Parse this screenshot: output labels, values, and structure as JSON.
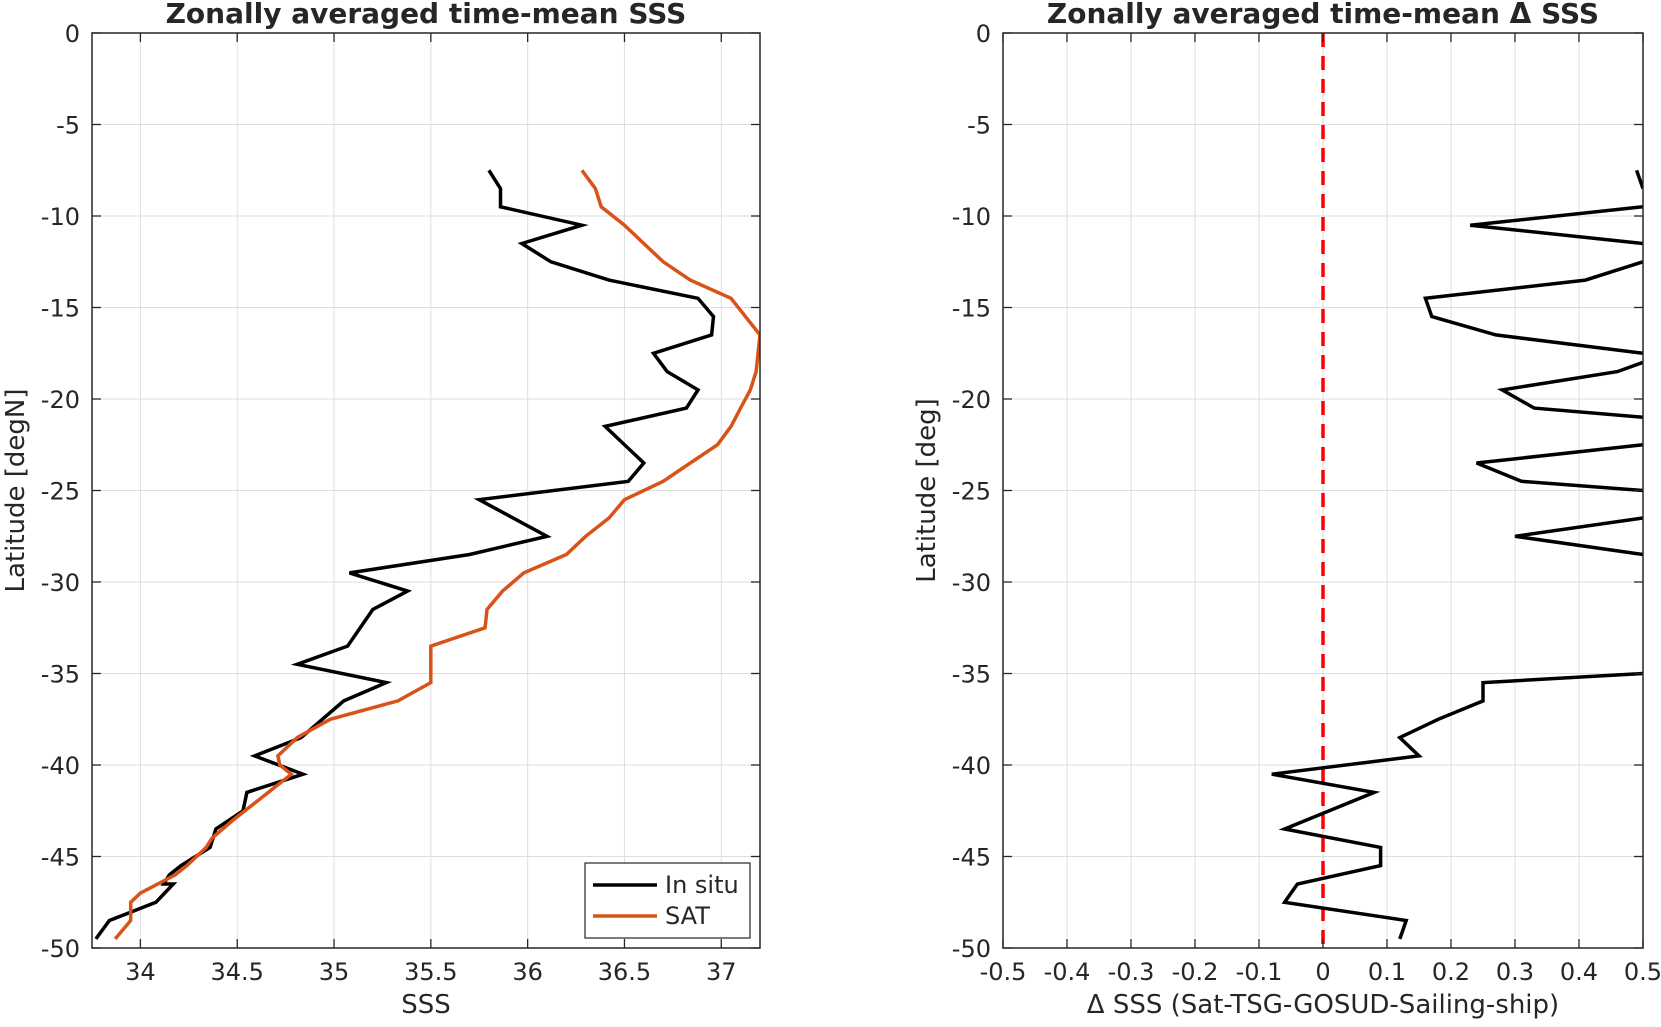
{
  "chart_data": [
    {
      "type": "line",
      "title": "Zonally averaged time-mean SSS",
      "xlabel": "SSS",
      "ylabel": "Latitude [degN]",
      "xlim": [
        33.75,
        37.2
      ],
      "ylim": [
        -50,
        0
      ],
      "xticks": [
        34,
        34.5,
        35,
        35.5,
        36,
        36.5,
        37
      ],
      "xtick_labels": [
        "34",
        "34.5",
        "35",
        "35.5",
        "36",
        "36.5",
        "37"
      ],
      "yticks": [
        0,
        -5,
        -10,
        -15,
        -20,
        -25,
        -30,
        -35,
        -40,
        -45,
        -50
      ],
      "ytick_labels": [
        "0",
        "-5",
        "-10",
        "-15",
        "-20",
        "-25",
        "-30",
        "-35",
        "-40",
        "-45",
        "-50"
      ],
      "grid": true,
      "legend_position": "bottom-right",
      "series": [
        {
          "name": "In situ",
          "color": "#000000",
          "x": [
            35.8,
            35.86,
            35.86,
            36.28,
            35.97,
            36.12,
            36.42,
            36.88,
            36.96,
            36.95,
            36.65,
            36.72,
            36.88,
            36.82,
            36.4,
            36.6,
            36.52,
            35.75,
            36.1,
            35.7,
            35.08,
            35.38,
            35.2,
            35.07,
            34.81,
            35.27,
            35.05,
            34.83,
            34.59,
            34.84,
            34.55,
            34.53,
            34.39,
            34.36,
            34.21,
            34.15,
            34.12,
            34.17,
            34.08,
            33.84,
            33.77
          ],
          "y": [
            -7.5,
            -8.5,
            -9.5,
            -10.5,
            -11.5,
            -12.5,
            -13.5,
            -14.5,
            -15.5,
            -16.5,
            -17.5,
            -18.5,
            -19.5,
            -20.5,
            -21.5,
            -23.5,
            -24.5,
            -25.5,
            -27.5,
            -28.5,
            -29.5,
            -30.5,
            -31.5,
            -33.5,
            -34.5,
            -35.5,
            -36.5,
            -38.5,
            -39.5,
            -40.5,
            -41.5,
            -42.5,
            -43.5,
            -44.5,
            -45.5,
            -46.0,
            -46.5,
            -46.5,
            -47.5,
            -48.5,
            -49.5
          ]
        },
        {
          "name": "SAT",
          "color": "#D95319",
          "x": [
            36.28,
            36.35,
            36.38,
            36.5,
            36.6,
            36.7,
            36.84,
            37.05,
            37.2,
            37.18,
            37.15,
            37.1,
            37.05,
            36.98,
            36.84,
            36.7,
            36.5,
            36.42,
            36.3,
            36.2,
            35.98,
            35.87,
            35.79,
            35.78,
            35.5,
            35.5,
            35.5,
            35.33,
            34.98,
            34.81,
            34.71,
            34.72,
            34.78,
            34.72,
            34.6,
            34.48,
            34.37,
            34.34,
            34.24,
            34.18,
            34.0,
            33.95,
            33.95,
            33.87
          ],
          "y": [
            -7.5,
            -8.5,
            -9.5,
            -10.5,
            -11.5,
            -12.5,
            -13.5,
            -14.5,
            -16.5,
            -18.5,
            -19.5,
            -20.5,
            -21.5,
            -22.5,
            -23.5,
            -24.5,
            -25.5,
            -26.5,
            -27.5,
            -28.5,
            -29.5,
            -30.5,
            -31.5,
            -32.5,
            -33.5,
            -34.5,
            -35.5,
            -36.5,
            -37.5,
            -38.5,
            -39.5,
            -40.0,
            -40.5,
            -41.0,
            -42.0,
            -43.0,
            -44.0,
            -44.5,
            -45.5,
            -46.0,
            -47.0,
            -47.5,
            -48.5,
            -49.5
          ]
        }
      ]
    },
    {
      "type": "line",
      "title": "Zonally averaged time-mean Δ SSS",
      "xlabel": "Δ SSS (Sat-TSG-GOSUD-Sailing-ship)",
      "ylabel": "Latitude [deg]",
      "xlim": [
        -0.5,
        0.5
      ],
      "ylim": [
        -50,
        0
      ],
      "xticks": [
        -0.5,
        -0.4,
        -0.3,
        -0.2,
        -0.1,
        0,
        0.1,
        0.2,
        0.3,
        0.4,
        0.5
      ],
      "xtick_labels": [
        "-0.5",
        "-0.4",
        "-0.3",
        "-0.2",
        "-0.1",
        "0",
        "0.1",
        "0.2",
        "0.3",
        "0.4",
        "0.5"
      ],
      "yticks": [
        0,
        -5,
        -10,
        -15,
        -20,
        -25,
        -30,
        -35,
        -40,
        -45,
        -50
      ],
      "ytick_labels": [
        "0",
        "-5",
        "-10",
        "-15",
        "-20",
        "-25",
        "-30",
        "-35",
        "-40",
        "-45",
        "-50"
      ],
      "grid": true,
      "reference_line": {
        "x": 0,
        "style": "dashed",
        "color": "#FF0000"
      },
      "series": [
        {
          "color": "#000000",
          "segments": [
            {
              "x": [
                0.49,
                0.5
              ],
              "y": [
                -7.5,
                -8.5
              ]
            },
            {
              "x": [
                0.5,
                0.23,
                0.5
              ],
              "y": [
                -9.5,
                -10.5,
                -11.5
              ]
            },
            {
              "x": [
                0.5,
                0.41,
                0.16,
                0.17,
                0.27,
                0.5
              ],
              "y": [
                -12.5,
                -13.5,
                -14.5,
                -15.5,
                -16.5,
                -17.5
              ]
            },
            {
              "x": [
                0.5,
                0.46,
                0.28,
                0.33,
                0.5
              ],
              "y": [
                -18,
                -18.5,
                -19.5,
                -20.5,
                -21.0
              ]
            },
            {
              "x": [
                0.5,
                0.24,
                0.31,
                0.5
              ],
              "y": [
                -22.5,
                -23.5,
                -24.5,
                -25.0
              ]
            },
            {
              "x": [
                0.5,
                0.3,
                0.5
              ],
              "y": [
                -26.5,
                -27.5,
                -28.5
              ]
            },
            {
              "x": [
                0.5,
                0.25,
                0.25,
                0.18,
                0.12,
                0.15,
                -0.08,
                0.08,
                -0.06,
                0.09,
                0.09,
                -0.04,
                -0.06,
                0.13,
                0.12
              ],
              "y": [
                -35,
                -35.5,
                -36.5,
                -37.5,
                -38.5,
                -39.5,
                -40.5,
                -41.5,
                -43.5,
                -44.5,
                -45.5,
                -46.5,
                -47.5,
                -48.5,
                -49.5
              ]
            }
          ]
        }
      ]
    }
  ]
}
